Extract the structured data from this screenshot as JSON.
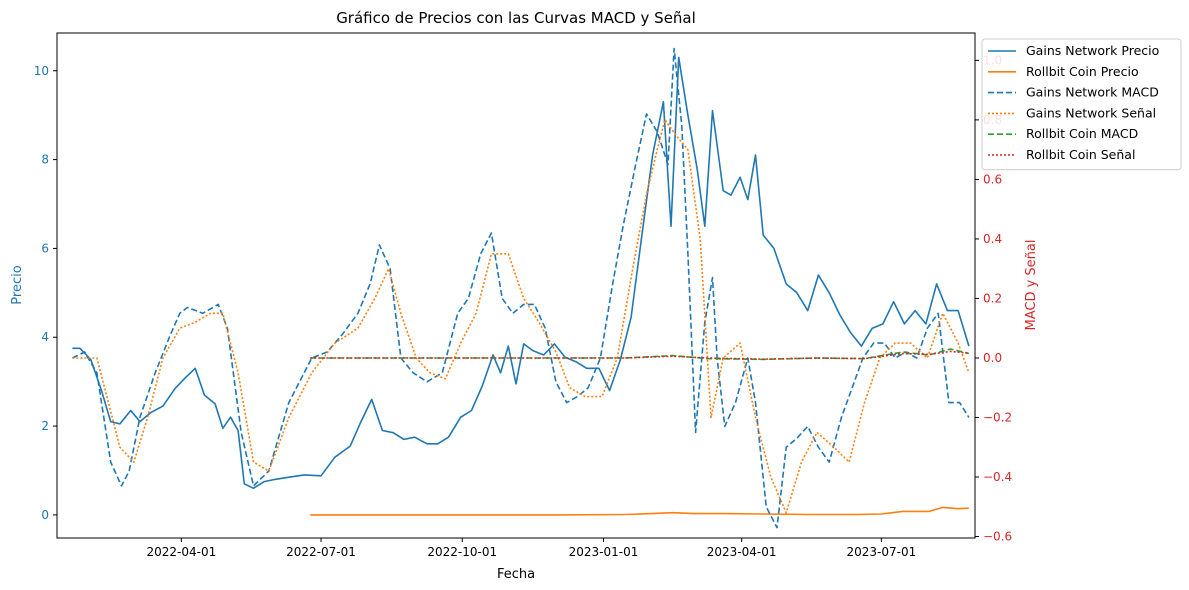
{
  "chart_data": {
    "type": "line",
    "title": "Gráfico de Precios con las Curvas MACD y Señal",
    "xlabel": "Fecha",
    "ylabel_left": "Precio",
    "ylabel_right": "MACD y Señal",
    "xlim": [
      "2022-01-10",
      "2023-08-31"
    ],
    "ylim_left": [
      -0.52,
      10.85
    ],
    "ylim_right": [
      -0.605,
      1.092
    ],
    "x_ticks": [
      "2022-04-01",
      "2022-07-01",
      "2022-10-01",
      "2023-01-01",
      "2023-04-01",
      "2023-07-01"
    ],
    "y_ticks_left": [
      "0",
      "2",
      "4",
      "6",
      "8",
      "10"
    ],
    "y_ticks_right": [
      "−0.6",
      "−0.4",
      "−0.2",
      "0.0",
      "0.2",
      "0.4",
      "0.6",
      "0.8",
      "1.0"
    ],
    "legend_position": "upper-right-outside",
    "grid": false,
    "colors": {
      "axis_left": "#1f77b4",
      "axis_right": "#d62728",
      "gains_precio": "#1f77b4",
      "rollbit_precio": "#ff7f0e",
      "gains_macd": "#1f77b4",
      "gains_senal": "#ff7f0e",
      "rollbit_macd": "#2ca02c",
      "rollbit_senal": "#d62728"
    },
    "series": [
      {
        "name": "Gains Network Precio",
        "axis": "left",
        "style": "solid",
        "color": "#1f77b4",
        "x": [
          "2022-01-20",
          "2022-01-25",
          "2022-02-01",
          "2022-02-08",
          "2022-02-14",
          "2022-02-20",
          "2022-02-27",
          "2022-03-05",
          "2022-03-12",
          "2022-03-20",
          "2022-03-28",
          "2022-04-04",
          "2022-04-10",
          "2022-04-16",
          "2022-04-23",
          "2022-04-28",
          "2022-05-03",
          "2022-05-08",
          "2022-05-12",
          "2022-05-18",
          "2022-05-25",
          "2022-06-01",
          "2022-06-10",
          "2022-06-20",
          "2022-07-01",
          "2022-07-10",
          "2022-07-20",
          "2022-07-27",
          "2022-08-03",
          "2022-08-10",
          "2022-08-17",
          "2022-08-24",
          "2022-08-31",
          "2022-09-08",
          "2022-09-15",
          "2022-09-22",
          "2022-09-30",
          "2022-10-07",
          "2022-10-14",
          "2022-10-21",
          "2022-10-26",
          "2022-10-31",
          "2022-11-05",
          "2022-11-10",
          "2022-11-16",
          "2022-11-23",
          "2022-11-30",
          "2022-12-07",
          "2022-12-14",
          "2022-12-21",
          "2022-12-29",
          "2023-01-05",
          "2023-01-12",
          "2023-01-19",
          "2023-01-26",
          "2023-02-02",
          "2023-02-09",
          "2023-02-14",
          "2023-02-19",
          "2023-02-25",
          "2023-03-03",
          "2023-03-08",
          "2023-03-13",
          "2023-03-20",
          "2023-03-25",
          "2023-03-31",
          "2023-04-05",
          "2023-04-10",
          "2023-04-15",
          "2023-04-22",
          "2023-04-30",
          "2023-05-07",
          "2023-05-14",
          "2023-05-21",
          "2023-05-28",
          "2023-06-04",
          "2023-06-11",
          "2023-06-18",
          "2023-06-25",
          "2023-07-02",
          "2023-07-09",
          "2023-07-16",
          "2023-07-23",
          "2023-07-30",
          "2023-08-06",
          "2023-08-13",
          "2023-08-20",
          "2023-08-27"
        ],
        "values": [
          3.75,
          3.75,
          3.5,
          2.8,
          2.1,
          2.05,
          2.35,
          2.1,
          2.3,
          2.45,
          2.85,
          3.1,
          3.3,
          2.7,
          2.5,
          1.95,
          2.2,
          1.9,
          0.7,
          0.6,
          0.75,
          0.8,
          0.85,
          0.9,
          0.88,
          1.3,
          1.55,
          2.1,
          2.6,
          1.9,
          1.85,
          1.7,
          1.75,
          1.6,
          1.6,
          1.75,
          2.2,
          2.35,
          2.9,
          3.6,
          3.2,
          3.8,
          2.95,
          3.85,
          3.7,
          3.6,
          3.85,
          3.55,
          3.45,
          3.3,
          3.3,
          2.8,
          3.5,
          4.45,
          6.3,
          8.1,
          9.3,
          6.5,
          10.3,
          9.0,
          7.8,
          6.5,
          9.1,
          7.3,
          7.2,
          7.6,
          7.1,
          8.1,
          6.3,
          6.0,
          5.2,
          5.0,
          4.6,
          5.4,
          5.0,
          4.5,
          4.1,
          3.8,
          4.2,
          4.3,
          4.8,
          4.3,
          4.6,
          4.3,
          5.2,
          4.6,
          4.6,
          3.8
        ]
      },
      {
        "name": "Rollbit Coin Precio",
        "axis": "left",
        "style": "solid",
        "color": "#ff7f0e",
        "x": [
          "2022-06-24",
          "2022-08-01",
          "2022-10-01",
          "2022-12-01",
          "2023-01-15",
          "2023-02-01",
          "2023-02-15",
          "2023-03-01",
          "2023-03-20",
          "2023-04-15",
          "2023-05-15",
          "2023-06-15",
          "2023-07-01",
          "2023-07-15",
          "2023-08-01",
          "2023-08-10",
          "2023-08-20",
          "2023-08-27"
        ],
        "values": [
          0.0,
          0.0,
          0.0,
          0.0,
          0.01,
          0.03,
          0.05,
          0.03,
          0.03,
          0.02,
          0.01,
          0.01,
          0.02,
          0.08,
          0.08,
          0.17,
          0.14,
          0.15
        ]
      },
      {
        "name": "Gains Network MACD",
        "axis": "right",
        "style": "dashed",
        "color": "#1f77b4",
        "x": [
          "2022-01-20",
          "2022-01-28",
          "2022-02-05",
          "2022-02-14",
          "2022-02-21",
          "2022-02-26",
          "2022-03-05",
          "2022-03-15",
          "2022-03-25",
          "2022-03-31",
          "2022-04-05",
          "2022-04-15",
          "2022-04-25",
          "2022-05-01",
          "2022-05-10",
          "2022-05-18",
          "2022-05-28",
          "2022-06-10",
          "2022-06-25",
          "2022-07-05",
          "2022-07-15",
          "2022-07-25",
          "2022-08-02",
          "2022-08-08",
          "2022-08-15",
          "2022-08-22",
          "2022-08-30",
          "2022-09-08",
          "2022-09-18",
          "2022-09-28",
          "2022-10-05",
          "2022-10-13",
          "2022-10-20",
          "2022-10-27",
          "2022-11-03",
          "2022-11-10",
          "2022-11-17",
          "2022-11-24",
          "2022-12-01",
          "2022-12-08",
          "2022-12-15",
          "2022-12-22",
          "2022-12-30",
          "2023-01-07",
          "2023-01-14",
          "2023-01-22",
          "2023-01-29",
          "2023-02-05",
          "2023-02-12",
          "2023-02-16",
          "2023-02-21",
          "2023-02-25",
          "2023-03-02",
          "2023-03-08",
          "2023-03-13",
          "2023-03-16",
          "2023-03-21",
          "2023-03-28",
          "2023-04-05",
          "2023-04-10",
          "2023-04-17",
          "2023-04-24",
          "2023-04-30",
          "2023-05-07",
          "2023-05-14",
          "2023-05-21",
          "2023-05-28",
          "2023-06-05",
          "2023-06-12",
          "2023-06-19",
          "2023-06-26",
          "2023-07-03",
          "2023-07-10",
          "2023-07-17",
          "2023-07-24",
          "2023-07-31",
          "2023-08-07",
          "2023-08-14",
          "2023-08-21",
          "2023-08-27"
        ],
        "values": [
          0.0,
          0.02,
          -0.05,
          -0.35,
          -0.43,
          -0.38,
          -0.2,
          -0.05,
          0.08,
          0.15,
          0.17,
          0.15,
          0.18,
          0.1,
          -0.25,
          -0.43,
          -0.38,
          -0.15,
          0.0,
          0.02,
          0.08,
          0.15,
          0.25,
          0.38,
          0.3,
          0.0,
          -0.05,
          -0.08,
          -0.05,
          0.15,
          0.2,
          0.35,
          0.42,
          0.2,
          0.15,
          0.18,
          0.18,
          0.1,
          -0.08,
          -0.15,
          -0.13,
          -0.1,
          0.0,
          0.25,
          0.45,
          0.65,
          0.82,
          0.76,
          0.65,
          1.04,
          0.78,
          0.35,
          -0.25,
          0.12,
          0.27,
          0.0,
          -0.23,
          -0.15,
          0.0,
          -0.15,
          -0.5,
          -0.57,
          -0.3,
          -0.27,
          -0.23,
          -0.3,
          -0.35,
          -0.2,
          -0.1,
          0.0,
          0.05,
          0.05,
          0.0,
          0.02,
          0.0,
          0.1,
          0.15,
          -0.15,
          -0.15,
          -0.2
        ]
      },
      {
        "name": "Gains Network Señal",
        "axis": "right",
        "style": "dotted",
        "color": "#ff7f0e",
        "x": [
          "2022-01-20",
          "2022-02-05",
          "2022-02-20",
          "2022-03-01",
          "2022-03-10",
          "2022-03-20",
          "2022-03-31",
          "2022-04-10",
          "2022-04-20",
          "2022-04-28",
          "2022-05-08",
          "2022-05-18",
          "2022-05-28",
          "2022-06-10",
          "2022-06-25",
          "2022-07-10",
          "2022-07-25",
          "2022-08-05",
          "2022-08-14",
          "2022-08-22",
          "2022-09-01",
          "2022-09-10",
          "2022-09-20",
          "2022-09-30",
          "2022-10-10",
          "2022-10-20",
          "2022-10-31",
          "2022-11-10",
          "2022-11-20",
          "2022-12-01",
          "2022-12-10",
          "2022-12-20",
          "2022-12-31",
          "2023-01-10",
          "2023-01-20",
          "2023-01-29",
          "2023-02-05",
          "2023-02-10",
          "2023-02-17",
          "2023-02-25",
          "2023-03-05",
          "2023-03-12",
          "2023-03-20",
          "2023-03-31",
          "2023-04-10",
          "2023-04-20",
          "2023-04-30",
          "2023-05-10",
          "2023-05-20",
          "2023-05-31",
          "2023-06-10",
          "2023-06-20",
          "2023-06-30",
          "2023-07-10",
          "2023-07-20",
          "2023-07-31",
          "2023-08-10",
          "2023-08-20",
          "2023-08-27"
        ],
        "values": [
          0.0,
          0.0,
          -0.3,
          -0.35,
          -0.2,
          0.0,
          0.1,
          0.12,
          0.15,
          0.15,
          -0.05,
          -0.35,
          -0.38,
          -0.2,
          -0.05,
          0.05,
          0.1,
          0.2,
          0.3,
          0.15,
          0.0,
          -0.05,
          -0.07,
          0.05,
          0.15,
          0.35,
          0.35,
          0.2,
          0.12,
          0.02,
          -0.1,
          -0.13,
          -0.13,
          0.0,
          0.3,
          0.55,
          0.7,
          0.8,
          0.75,
          0.7,
          0.4,
          -0.2,
          0.0,
          0.05,
          -0.2,
          -0.4,
          -0.52,
          -0.35,
          -0.25,
          -0.3,
          -0.35,
          -0.15,
          0.0,
          0.05,
          0.05,
          0.0,
          0.15,
          0.05,
          -0.05
        ]
      },
      {
        "name": "Rollbit Coin MACD",
        "axis": "right",
        "style": "dashed",
        "color": "#2ca02c",
        "x": [
          "2022-06-24",
          "2022-09-01",
          "2022-12-01",
          "2023-01-15",
          "2023-02-15",
          "2023-03-10",
          "2023-04-15",
          "2023-05-20",
          "2023-06-20",
          "2023-07-15",
          "2023-08-01",
          "2023-08-15",
          "2023-08-27"
        ],
        "values": [
          0.0,
          0.0,
          0.0,
          0.0,
          0.008,
          -0.002,
          -0.005,
          0.0,
          -0.002,
          0.02,
          0.01,
          0.03,
          0.015
        ]
      },
      {
        "name": "Rollbit Coin Señal",
        "axis": "right",
        "style": "dotted",
        "color": "#d62728",
        "x": [
          "2022-06-24",
          "2022-09-01",
          "2022-12-01",
          "2023-01-15",
          "2023-02-15",
          "2023-03-10",
          "2023-04-15",
          "2023-05-20",
          "2023-06-20",
          "2023-07-15",
          "2023-08-01",
          "2023-08-15",
          "2023-08-27"
        ],
        "values": [
          0.0,
          0.0,
          0.0,
          0.0,
          0.006,
          0.0,
          -0.004,
          0.0,
          -0.002,
          0.015,
          0.012,
          0.022,
          0.016
        ]
      }
    ]
  }
}
